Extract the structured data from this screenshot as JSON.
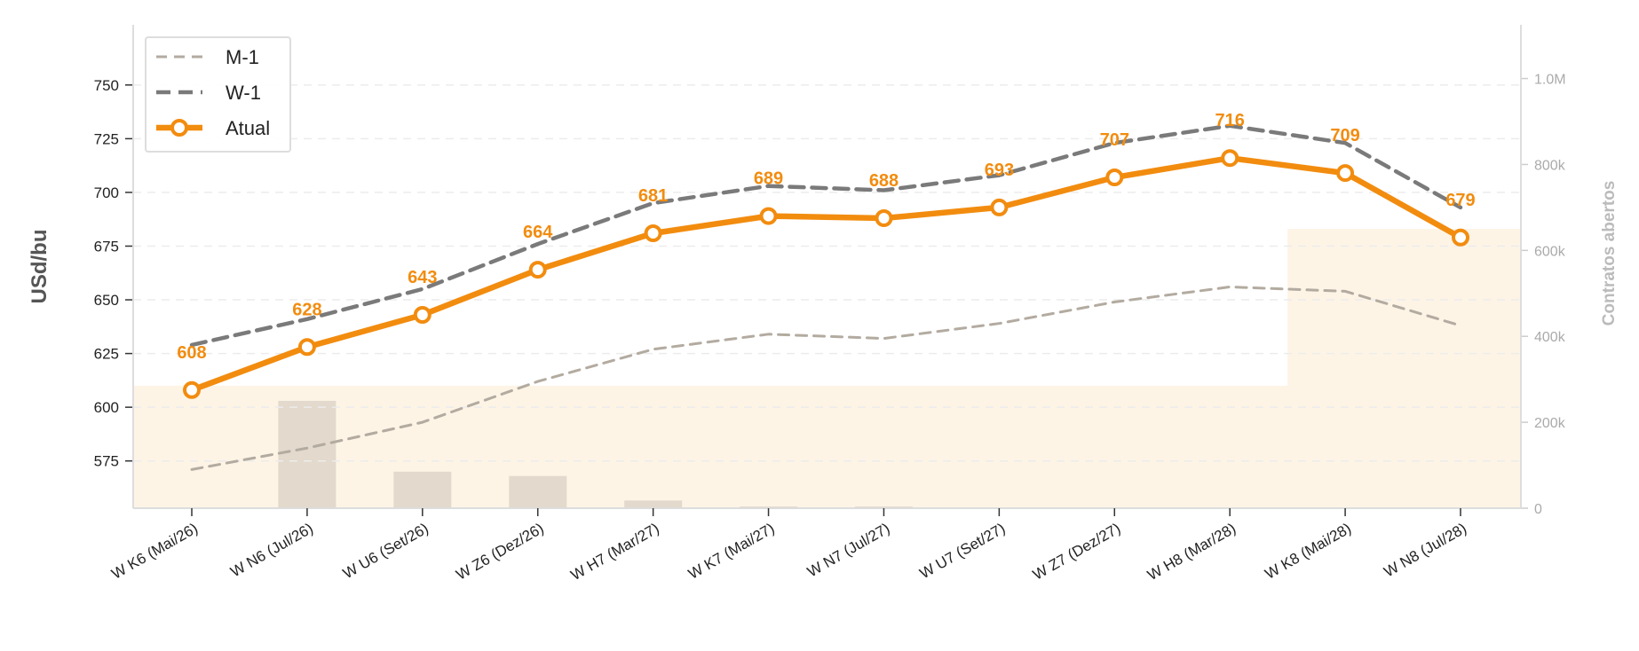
{
  "chart_data": {
    "type": "line",
    "categories": [
      "W K6 (Mai/26)",
      "W N6 (Jul/26)",
      "W U6 (Set/26)",
      "W Z6 (Dez/26)",
      "W H7 (Mar/27)",
      "W K7 (Mai/27)",
      "W N7 (Jul/27)",
      "W U7 (Set/27)",
      "W Z7 (Dez/27)",
      "W H8 (Mar/28)",
      "W K8 (Mai/28)",
      "W N8 (Jul/28)"
    ],
    "series": [
      {
        "name": "M-1",
        "style": "dashed-thin",
        "color": "#b3aba0",
        "values": [
          571,
          581,
          593,
          612,
          627,
          634,
          632,
          639,
          649,
          656,
          654,
          638
        ]
      },
      {
        "name": "W-1",
        "style": "dashed-thick",
        "color": "#7a7a7a",
        "values": [
          629,
          641,
          655,
          676,
          695,
          703,
          701,
          708,
          723,
          731,
          723,
          693
        ]
      },
      {
        "name": "Atual",
        "style": "solid-markers",
        "color": "#f28c0f",
        "values": [
          608,
          628,
          643,
          664,
          681,
          689,
          688,
          693,
          707,
          716,
          709,
          679
        ]
      }
    ],
    "data_labels": [
      "608",
      "628",
      "643",
      "664",
      "681",
      "689",
      "688",
      "693",
      "707",
      "716",
      "709",
      "679"
    ],
    "open_interest": {
      "axis": "right",
      "bar_color": "#e3d9cc",
      "values": [
        0,
        250000,
        85000,
        75000,
        18000,
        4000,
        4000,
        0,
        0,
        0,
        0,
        0
      ],
      "area_values": [
        285000,
        285000,
        285000,
        285000,
        285000,
        285000,
        285000,
        285000,
        285000,
        285000,
        650000,
        650000
      ],
      "area_color": "#fdf4e6"
    },
    "ylabel": "USd/bu",
    "y2label": "Contratos abertos",
    "ylim": [
      553,
      778
    ],
    "y2lim": [
      0,
      1125000
    ],
    "yticks": [
      {
        "value": 575,
        "label": "575"
      },
      {
        "value": 600,
        "label": "600"
      },
      {
        "value": 625,
        "label": "625"
      },
      {
        "value": 650,
        "label": "650"
      },
      {
        "value": 675,
        "label": "675"
      },
      {
        "value": 700,
        "label": "700"
      },
      {
        "value": 725,
        "label": "725"
      },
      {
        "value": 750,
        "label": "750"
      }
    ],
    "y2ticks": [
      {
        "value": 0,
        "label": "0"
      },
      {
        "value": 200000,
        "label": "200k"
      },
      {
        "value": 400000,
        "label": "400k"
      },
      {
        "value": 600000,
        "label": "600k"
      },
      {
        "value": 800000,
        "label": "800k"
      },
      {
        "value": 1000000,
        "label": "1.0M"
      }
    ],
    "grid": true,
    "legend": {
      "position": "top-left",
      "entries": [
        "M-1",
        "W-1",
        "Atual"
      ]
    }
  }
}
